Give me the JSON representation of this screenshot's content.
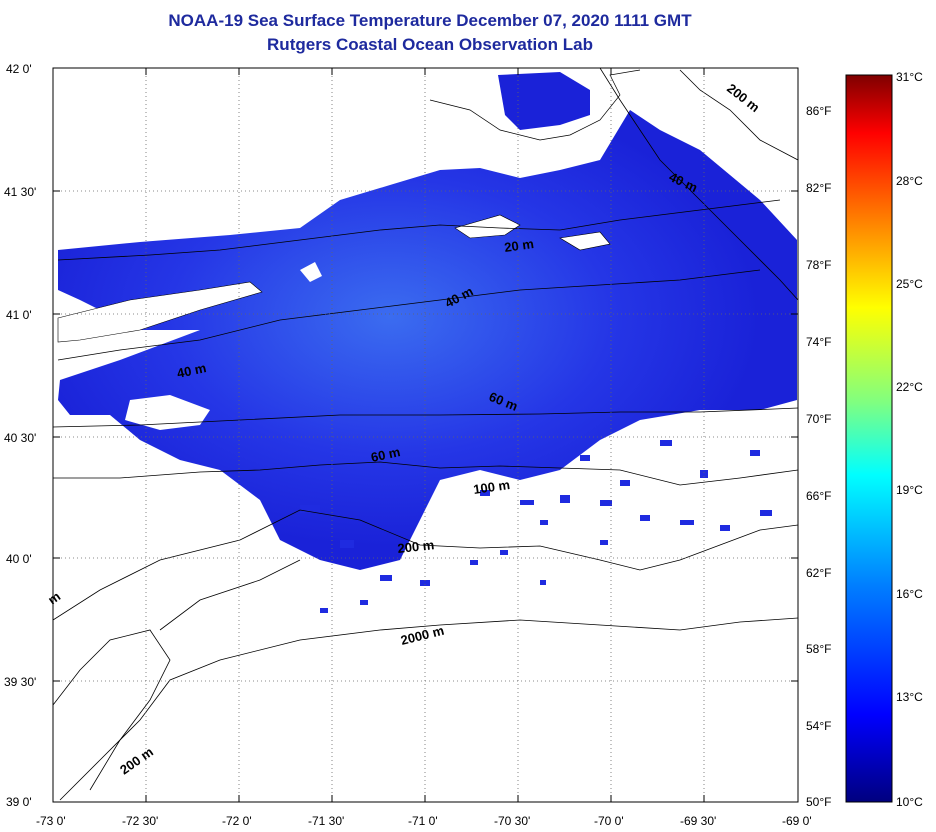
{
  "header": {
    "title_line1": "NOAA-19 Sea Surface Temperature December 07, 2020 1111 GMT",
    "title_line2": "Rutgers Coastal Ocean Observation Lab"
  },
  "map": {
    "lat_labels": [
      "42 0'",
      "41 30'",
      "41 0'",
      "40 30'",
      "40 0'",
      "39 30'",
      "39 0'"
    ],
    "lon_labels": [
      "-73 0'",
      "-72 30'",
      "-72 0'",
      "-71 30'",
      "-71 0'",
      "-70 30'",
      "-70 0'",
      "-69 30'",
      "-69 0'"
    ],
    "depth_labels": [
      "200 m",
      "40 m",
      "20 m",
      "40 m",
      "40 m",
      "60 m",
      "60 m",
      "100 m",
      "200 m",
      "2000 m",
      "200 m",
      "m"
    ],
    "sst_color": "#1f2be0",
    "land_color": "#ffffff"
  },
  "colorbar": {
    "celsius_labels": [
      "31°C",
      "28°C",
      "25°C",
      "22°C",
      "19°C",
      "16°C",
      "13°C",
      "10°C"
    ],
    "fahrenheit_labels": [
      "86°F",
      "82°F",
      "78°F",
      "74°F",
      "70°F",
      "66°F",
      "62°F",
      "58°F",
      "54°F",
      "50°F"
    ],
    "colors": [
      "#00007f",
      "#0000ff",
      "#0080ff",
      "#00ffff",
      "#80ff80",
      "#ffff00",
      "#ff8000",
      "#ff0000",
      "#7f0000"
    ]
  }
}
